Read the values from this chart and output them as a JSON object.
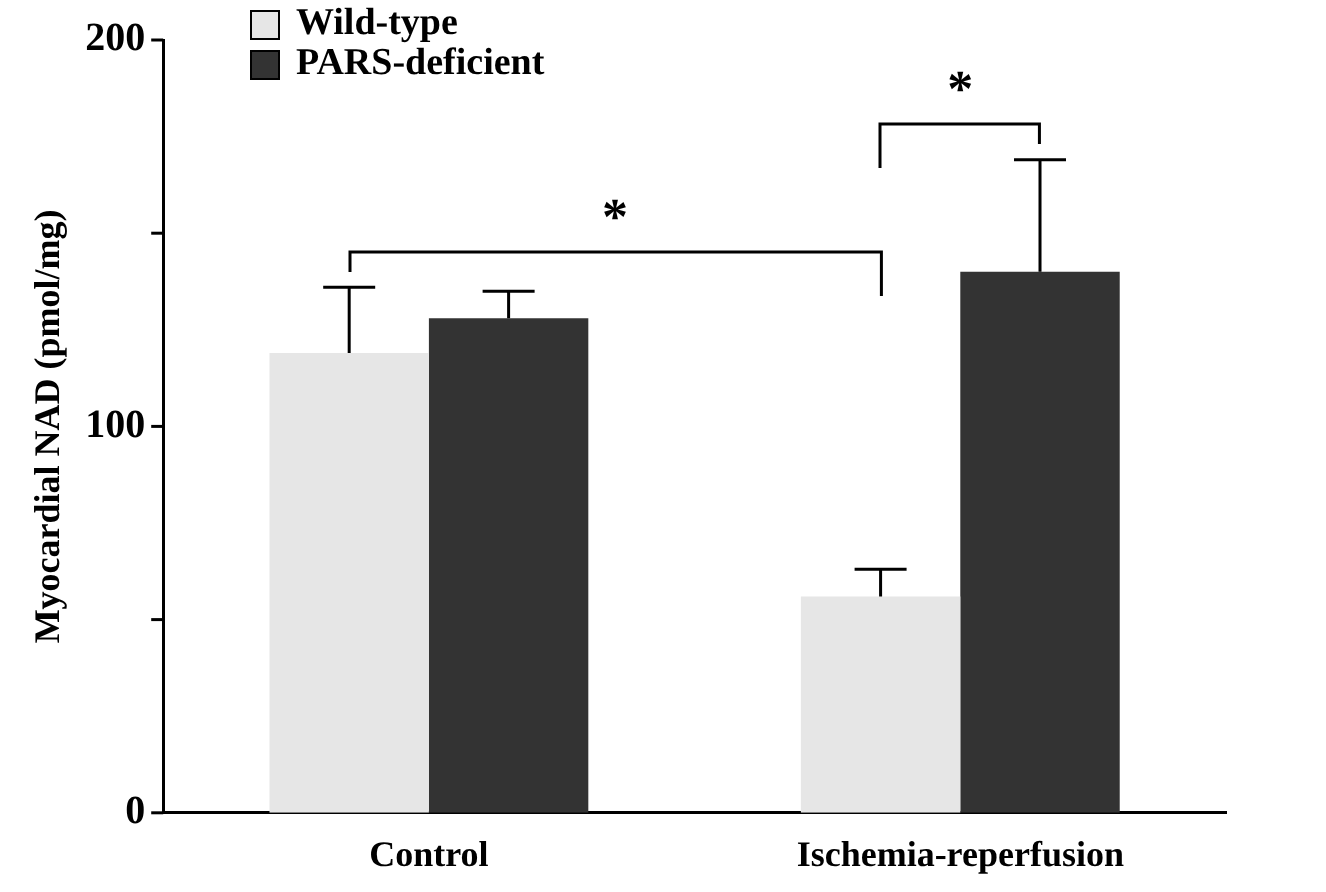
{
  "chart_data": {
    "type": "bar",
    "categories": [
      "Control",
      "Ischemia-reperfusion"
    ],
    "series": [
      {
        "name": "Wild-type",
        "color": "#e6e6e6",
        "values": [
          119,
          56
        ],
        "errors": [
          17,
          7
        ]
      },
      {
        "name": "PARS-deficient",
        "color": "#333333",
        "values": [
          128,
          140
        ],
        "errors": [
          7,
          29
        ]
      }
    ],
    "ylabel": "Myocardial NAD (pmol/mg)",
    "ylim": [
      0,
      200
    ],
    "yticks": [
      0,
      {
        "value": 50,
        "label": null
      },
      100,
      {
        "value": 150,
        "label": null
      },
      200
    ],
    "grid": false,
    "legend": "top left",
    "annotations": [
      "*",
      "*"
    ]
  }
}
